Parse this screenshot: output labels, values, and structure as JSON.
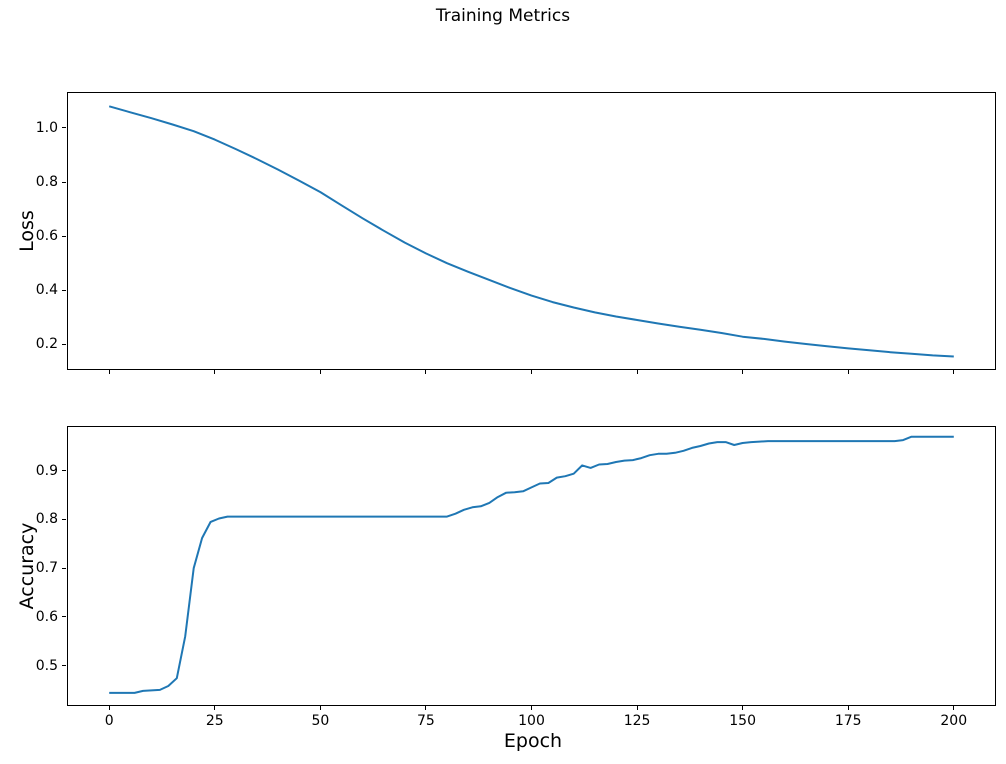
{
  "figure": {
    "title": "Training Metrics",
    "background": "#ffffff"
  },
  "style": {
    "line_color": "#1f77b4",
    "axis_color": "#000000",
    "text_color": "#000000"
  },
  "chart_data": [
    {
      "id": "loss",
      "type": "line",
      "title": "",
      "xlabel": "",
      "ylabel": "Loss",
      "grid": false,
      "legend_position": "none",
      "xlim": [
        -10,
        210
      ],
      "ylim": [
        0.105,
        1.133
      ],
      "xticks": [
        0,
        25,
        50,
        75,
        100,
        125,
        150,
        175,
        200
      ],
      "xtick_labels": [],
      "yticks": [
        0.2,
        0.4,
        0.6,
        0.8,
        1.0
      ],
      "ytick_labels": [
        "0.2",
        "0.4",
        "0.6",
        "0.8",
        "1.0"
      ],
      "x": [
        0,
        5,
        10,
        15,
        20,
        25,
        30,
        35,
        40,
        45,
        50,
        55,
        60,
        65,
        70,
        75,
        80,
        85,
        90,
        95,
        100,
        105,
        110,
        115,
        120,
        125,
        130,
        135,
        140,
        145,
        150,
        155,
        160,
        165,
        170,
        175,
        180,
        185,
        190,
        195,
        200
      ],
      "y": [
        1.08,
        1.058,
        1.036,
        1.013,
        0.988,
        0.957,
        0.922,
        0.885,
        0.846,
        0.805,
        0.763,
        0.714,
        0.666,
        0.62,
        0.576,
        0.536,
        0.5,
        0.468,
        0.438,
        0.408,
        0.38,
        0.356,
        0.336,
        0.318,
        0.303,
        0.29,
        0.277,
        0.265,
        0.254,
        0.242,
        0.228,
        0.22,
        0.21,
        0.201,
        0.193,
        0.185,
        0.178,
        0.171,
        0.165,
        0.159,
        0.155
      ]
    },
    {
      "id": "accuracy",
      "type": "line",
      "title": "",
      "xlabel": "Epoch",
      "ylabel": "Accuracy",
      "grid": false,
      "legend_position": "none",
      "xlim": [
        -10,
        210
      ],
      "ylim": [
        0.417,
        0.992
      ],
      "xticks": [
        0,
        25,
        50,
        75,
        100,
        125,
        150,
        175,
        200
      ],
      "xtick_labels": [
        "0",
        "25",
        "50",
        "75",
        "100",
        "125",
        "150",
        "175",
        "200"
      ],
      "yticks": [
        0.5,
        0.6,
        0.7,
        0.8,
        0.9
      ],
      "ytick_labels": [
        "0.5",
        "0.6",
        "0.7",
        "0.8",
        "0.9"
      ],
      "x": [
        0,
        2,
        4,
        6,
        8,
        10,
        12,
        14,
        16,
        18,
        20,
        22,
        24,
        26,
        28,
        30,
        32,
        34,
        36,
        38,
        40,
        42,
        44,
        46,
        48,
        50,
        52,
        54,
        56,
        58,
        60,
        62,
        64,
        66,
        68,
        70,
        72,
        74,
        76,
        78,
        80,
        82,
        84,
        86,
        88,
        90,
        92,
        94,
        96,
        98,
        100,
        102,
        104,
        106,
        108,
        110,
        112,
        114,
        116,
        118,
        120,
        122,
        124,
        126,
        128,
        130,
        132,
        134,
        136,
        138,
        140,
        142,
        144,
        146,
        148,
        150,
        152,
        154,
        156,
        158,
        160,
        162,
        164,
        166,
        168,
        170,
        172,
        174,
        176,
        178,
        180,
        182,
        184,
        186,
        188,
        190,
        192,
        194,
        196,
        198,
        200
      ],
      "y": [
        0.444,
        0.444,
        0.444,
        0.444,
        0.448,
        0.449,
        0.45,
        0.458,
        0.474,
        0.56,
        0.7,
        0.762,
        0.795,
        0.802,
        0.806,
        0.806,
        0.806,
        0.806,
        0.806,
        0.806,
        0.806,
        0.806,
        0.806,
        0.806,
        0.806,
        0.806,
        0.806,
        0.806,
        0.806,
        0.806,
        0.806,
        0.806,
        0.806,
        0.806,
        0.806,
        0.806,
        0.806,
        0.806,
        0.806,
        0.806,
        0.806,
        0.812,
        0.82,
        0.825,
        0.827,
        0.834,
        0.846,
        0.855,
        0.856,
        0.858,
        0.866,
        0.874,
        0.875,
        0.886,
        0.889,
        0.894,
        0.911,
        0.906,
        0.913,
        0.914,
        0.918,
        0.921,
        0.922,
        0.926,
        0.932,
        0.935,
        0.935,
        0.937,
        0.941,
        0.947,
        0.951,
        0.956,
        0.959,
        0.959,
        0.953,
        0.957,
        0.959,
        0.96,
        0.961,
        0.961,
        0.961,
        0.961,
        0.961,
        0.961,
        0.961,
        0.961,
        0.961,
        0.961,
        0.961,
        0.961,
        0.961,
        0.961,
        0.961,
        0.961,
        0.963,
        0.97,
        0.97,
        0.97,
        0.97,
        0.97,
        0.97
      ]
    }
  ]
}
